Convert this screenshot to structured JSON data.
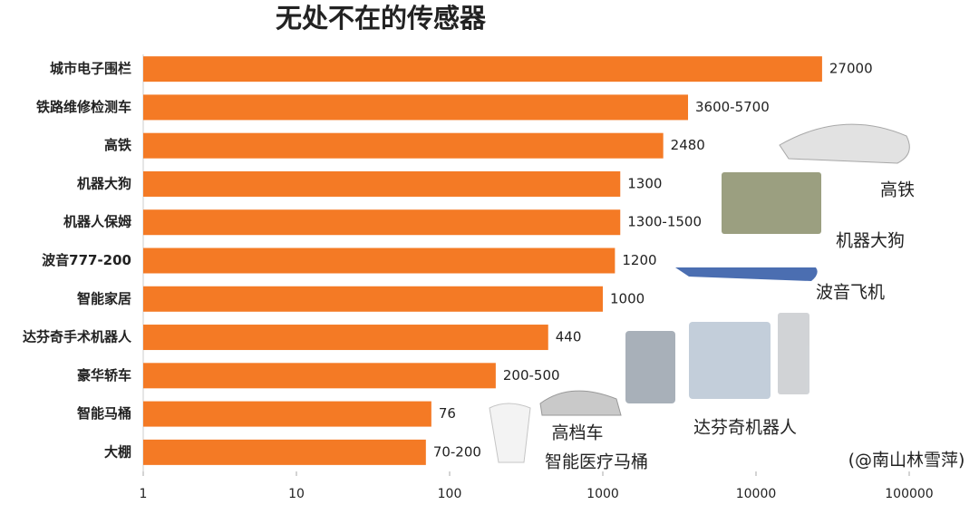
{
  "chart_data": {
    "type": "bar",
    "orientation": "horizontal",
    "title": "无处不在的传感器",
    "categories": [
      "城市电子围栏",
      "铁路维修检测车",
      "高铁",
      "机器大狗",
      "机器人保姆",
      "波音777-200",
      "智能家居",
      "达芬奇手术机器人",
      "豪华轿车",
      "智能马桶",
      "大棚"
    ],
    "values": [
      27000,
      3600,
      2480,
      1300,
      1300,
      1200,
      1000,
      440,
      200,
      76,
      70
    ],
    "value_labels": [
      "27000",
      "3600-5700",
      "2480",
      "1300",
      "1300-1500",
      "1200",
      "1000",
      "440",
      "200-500",
      "76",
      "70-200"
    ],
    "color": "#f47a25",
    "xscale": "log",
    "xlim": [
      1,
      100000
    ],
    "xticks": [
      1,
      10,
      100,
      1000,
      10000,
      100000
    ],
    "grid": false,
    "annotations": [
      "高铁",
      "机器大狗",
      "波音飞机",
      "达芬奇机器人",
      "高档车",
      "智能医疗马桶",
      "(@南山林雪萍)"
    ]
  }
}
